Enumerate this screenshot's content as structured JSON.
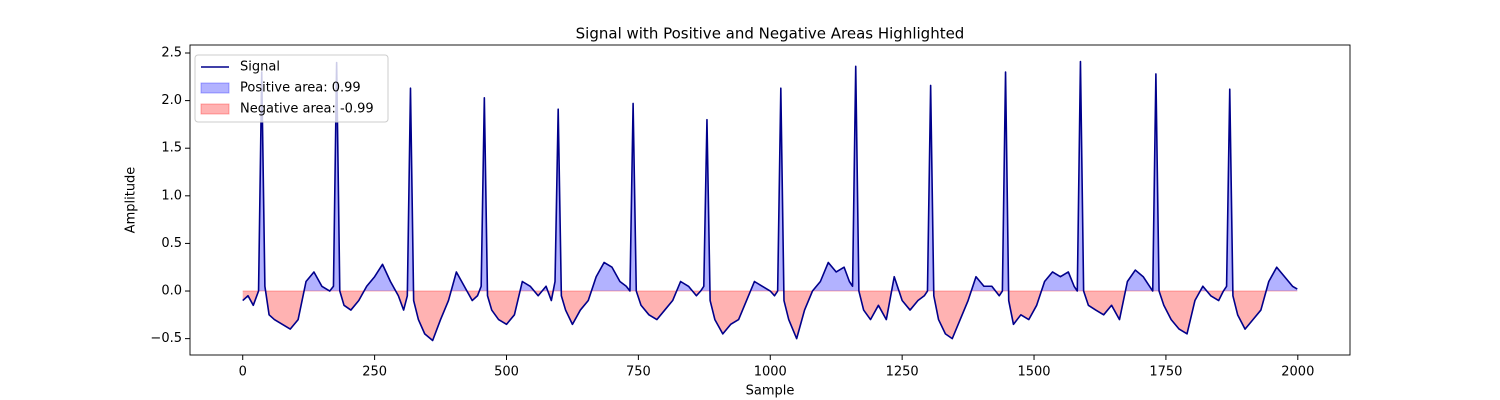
{
  "chart_data": {
    "type": "line",
    "title": "Signal with Positive and Negative Areas Highlighted",
    "x_label": "Sample",
    "y_label": "Amplitude",
    "x": [
      0,
      10,
      20,
      30,
      36,
      42,
      50,
      60,
      75,
      90,
      105,
      120,
      135,
      150,
      165,
      172,
      178,
      184,
      192,
      205,
      220,
      235,
      250,
      265,
      280,
      295,
      305,
      312,
      318,
      324,
      333,
      345,
      360,
      375,
      390,
      405,
      420,
      435,
      445,
      452,
      458,
      464,
      472,
      485,
      500,
      515,
      530,
      545,
      560,
      575,
      585,
      592,
      598,
      604,
      612,
      625,
      640,
      655,
      670,
      685,
      700,
      715,
      727,
      734,
      740,
      746,
      755,
      770,
      785,
      800,
      815,
      830,
      845,
      860,
      868,
      874,
      880,
      886,
      895,
      910,
      925,
      940,
      955,
      970,
      985,
      1000,
      1008,
      1014,
      1020,
      1026,
      1035,
      1050,
      1065,
      1080,
      1095,
      1110,
      1125,
      1140,
      1150,
      1156,
      1162,
      1168,
      1177,
      1190,
      1205,
      1220,
      1235,
      1250,
      1265,
      1280,
      1292,
      1298,
      1304,
      1310,
      1319,
      1332,
      1345,
      1360,
      1375,
      1390,
      1405,
      1420,
      1434,
      1440,
      1446,
      1452,
      1461,
      1475,
      1490,
      1505,
      1520,
      1535,
      1550,
      1565,
      1576,
      1582,
      1588,
      1594,
      1603,
      1617,
      1632,
      1647,
      1662,
      1677,
      1692,
      1707,
      1719,
      1725,
      1731,
      1737,
      1746,
      1760,
      1775,
      1790,
      1805,
      1820,
      1835,
      1850,
      1859,
      1865,
      1871,
      1877,
      1886,
      1900,
      1915,
      1930,
      1945,
      1960,
      1975,
      1990,
      1999
    ],
    "series": [
      {
        "name": "Signal",
        "color": "#00008b",
        "values": [
          -0.1,
          -0.05,
          -0.15,
          0.0,
          2.3,
          0.05,
          -0.25,
          -0.3,
          -0.35,
          -0.4,
          -0.3,
          0.1,
          0.2,
          0.05,
          0.0,
          0.05,
          2.4,
          0.0,
          -0.15,
          -0.2,
          -0.1,
          0.05,
          0.15,
          0.28,
          0.1,
          -0.05,
          -0.2,
          -0.05,
          2.13,
          -0.1,
          -0.3,
          -0.45,
          -0.52,
          -0.3,
          -0.1,
          0.2,
          0.05,
          -0.1,
          -0.05,
          0.05,
          2.03,
          -0.05,
          -0.2,
          -0.3,
          -0.35,
          -0.25,
          0.1,
          0.05,
          -0.05,
          0.05,
          -0.1,
          0.1,
          1.91,
          -0.05,
          -0.2,
          -0.35,
          -0.2,
          -0.1,
          0.15,
          0.3,
          0.25,
          0.1,
          0.05,
          0.0,
          1.97,
          0.0,
          -0.15,
          -0.25,
          -0.3,
          -0.2,
          -0.1,
          0.1,
          0.05,
          -0.05,
          0.0,
          0.05,
          1.8,
          -0.1,
          -0.3,
          -0.45,
          -0.35,
          -0.3,
          -0.1,
          0.1,
          0.05,
          0.0,
          -0.05,
          0.0,
          2.13,
          -0.1,
          -0.3,
          -0.5,
          -0.2,
          0.0,
          0.1,
          0.3,
          0.2,
          0.25,
          0.1,
          0.05,
          2.36,
          0.0,
          -0.2,
          -0.3,
          -0.15,
          -0.3,
          0.15,
          -0.1,
          -0.2,
          -0.1,
          -0.05,
          0.0,
          2.16,
          -0.05,
          -0.3,
          -0.45,
          -0.5,
          -0.3,
          -0.1,
          0.15,
          0.05,
          0.05,
          -0.05,
          0.0,
          2.3,
          -0.1,
          -0.35,
          -0.25,
          -0.3,
          -0.15,
          0.1,
          0.2,
          0.15,
          0.2,
          0.05,
          0.0,
          2.41,
          0.0,
          -0.15,
          -0.2,
          -0.25,
          -0.15,
          -0.3,
          0.1,
          0.22,
          0.15,
          0.05,
          0.0,
          2.28,
          0.0,
          -0.15,
          -0.3,
          -0.4,
          -0.45,
          -0.1,
          0.05,
          -0.05,
          -0.1,
          0.0,
          0.05,
          2.12,
          -0.05,
          -0.25,
          -0.4,
          -0.3,
          -0.2,
          0.1,
          0.25,
          0.15,
          0.05,
          0.02
        ]
      }
    ],
    "fills": [
      {
        "name": "Positive area: 0.99",
        "color": "#0000ff",
        "side": "positive"
      },
      {
        "name": "Negative area: -0.99",
        "color": "#ff0000",
        "side": "negative"
      }
    ],
    "xlim": [
      -99.95,
      2098.95
    ],
    "xticks": [
      0,
      250,
      500,
      750,
      1000,
      1250,
      1500,
      1750,
      2000
    ],
    "ylim": [
      -0.672,
      2.584
    ],
    "yticks": [
      {
        "value": -0.5,
        "label": "−0.5"
      },
      {
        "value": 0,
        "label": "0.0"
      },
      0.5,
      {
        "value": 1,
        "label": "1.0"
      },
      1.5,
      {
        "value": 2,
        "label": "2.0"
      },
      2.5
    ],
    "legend": "upper left"
  }
}
